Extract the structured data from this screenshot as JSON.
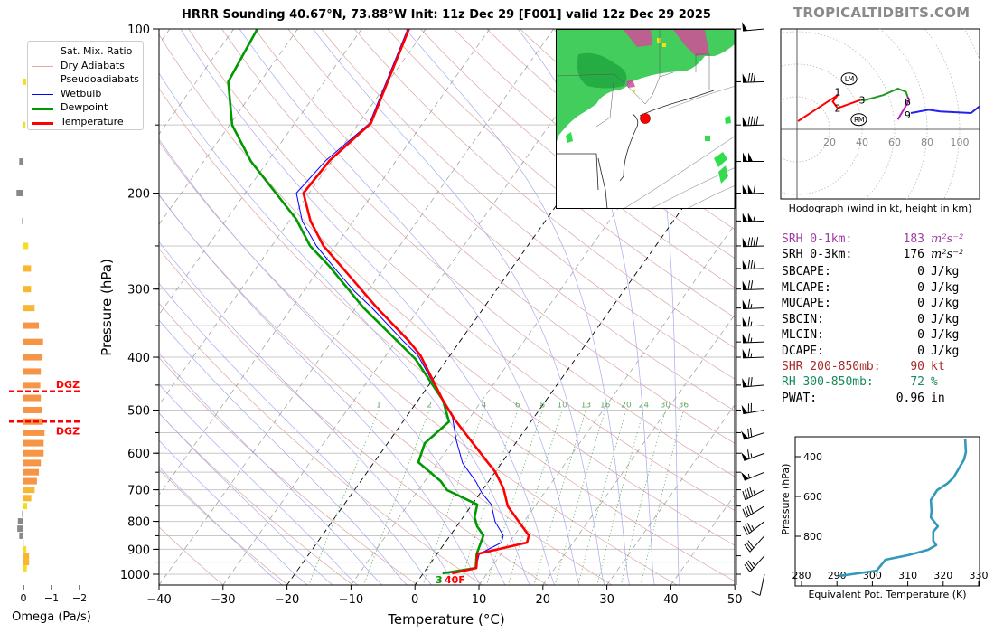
{
  "header": {
    "title": "HRRR Sounding 40.67°N, 73.88°W Init: 11z Dec 29 [F001] valid 12z Dec 29 2025",
    "watermark": "TROPICALTIDBITS.COM"
  },
  "legend": [
    {
      "label": "Sat. Mix. Ratio",
      "color": "#55aa55",
      "style": "dotted"
    },
    {
      "label": "Dry Adiabats",
      "color": "#e0a8a8",
      "style": "solid-thin"
    },
    {
      "label": "Pseudoadiabats",
      "color": "#aaaaee",
      "style": "solid-thin"
    },
    {
      "label": "Wetbulb",
      "color": "#0000ff",
      "style": "solid"
    },
    {
      "label": "Dewpoint",
      "color": "#009900",
      "style": "thick"
    },
    {
      "label": "Temperature",
      "color": "#ff0000",
      "style": "thick"
    }
  ],
  "stats": [
    {
      "label": "SRH 0-1km:",
      "value": "183",
      "unit": "m²s⁻²",
      "color": "#a03ca0"
    },
    {
      "label": "SRH 0-3km:",
      "value": "176",
      "unit": "m²s⁻²",
      "color": "#000000"
    },
    {
      "label": "SBCAPE:",
      "value": "0",
      "unit": "J/kg",
      "color": "#000000"
    },
    {
      "label": "MLCAPE:",
      "value": "0",
      "unit": "J/kg",
      "color": "#000000"
    },
    {
      "label": "MUCAPE:",
      "value": "0",
      "unit": "J/kg",
      "color": "#000000"
    },
    {
      "label": "SBCIN:",
      "value": "0",
      "unit": "J/kg",
      "color": "#000000"
    },
    {
      "label": "MLCIN:",
      "value": "0",
      "unit": "J/kg",
      "color": "#000000"
    },
    {
      "label": "DCAPE:",
      "value": "0",
      "unit": "J/kg",
      "color": "#000000"
    },
    {
      "label": "SHR 200-850mb:",
      "value": "90",
      "unit": "kt",
      "color": "#a52a2a"
    },
    {
      "label": "RH 300-850mb:",
      "value": "72",
      "unit": "%",
      "color": "#1a8a5a"
    },
    {
      "label": "PWAT:",
      "value": "0.96",
      "unit": "in",
      "color": "#000000"
    }
  ],
  "surface_labels": {
    "dewpoint": "3",
    "temperature": "40F",
    "dewpoint_color": "#009900",
    "temperature_color": "#ff0000"
  },
  "dgz_label": "DGZ",
  "chart_data": [
    {
      "type": "line",
      "name": "skew-t",
      "title": "HRRR Sounding 40.67°N, 73.88°W Init: 11z Dec 29 [F001] valid 12z Dec 29 2025",
      "xlabel": "Temperature (°C)",
      "ylabel": "Pressure (hPa)",
      "xlim": [
        -40,
        50
      ],
      "ylim": [
        1046,
        100
      ],
      "xticks": [
        -40,
        -30,
        -20,
        -10,
        0,
        10,
        20,
        30,
        40,
        50
      ],
      "xtick_labels": [
        "−40",
        "−30",
        "−20",
        "−10",
        "0",
        "10",
        "20",
        "30",
        "40",
        "50"
      ],
      "yticks": [
        100,
        200,
        300,
        400,
        500,
        600,
        700,
        800,
        900,
        1000
      ],
      "ytick_labels": [
        "100",
        "200",
        "300",
        "400",
        "500",
        "600",
        "700",
        "800",
        "900",
        "1000"
      ],
      "isobars": [
        100,
        150,
        200,
        250,
        300,
        350,
        400,
        450,
        500,
        550,
        600,
        650,
        700,
        750,
        800,
        850,
        900,
        950,
        1000
      ],
      "highlight_isotherms": [
        0,
        -20
      ],
      "mixing_ratios": [
        1,
        2,
        4,
        6,
        8,
        10,
        13,
        16,
        20,
        24,
        30,
        36
      ],
      "mixing_ratio_labels": [
        "1",
        "2",
        "4",
        "6",
        "8",
        "10",
        "13",
        "16",
        "20",
        "24",
        "30",
        "36"
      ],
      "colors": {
        "temperature": "#ff0000",
        "dewpoint": "#009900",
        "wetbulb": "#0000ff",
        "dry": "#dba5a5",
        "moist": "#aaaaee",
        "mixing": "#55aa55",
        "isotherm": "#999999"
      },
      "series": [
        {
          "name": "Temperature",
          "points": [
            [
              100,
              -62.6
            ],
            [
              149,
              -58.1
            ],
            [
              174,
              -60.4
            ],
            [
              200,
              -60.9
            ],
            [
              225,
              -56.7
            ],
            [
              250,
              -51.9
            ],
            [
              278,
              -45.7
            ],
            [
              303,
              -40.7
            ],
            [
              324,
              -36.8
            ],
            [
              373,
              -28.1
            ],
            [
              397,
              -24.6
            ],
            [
              480,
              -16.1
            ],
            [
              519,
              -12.3
            ],
            [
              625,
              -2.1
            ],
            [
              649,
              0.0
            ],
            [
              696,
              3.1
            ],
            [
              751,
              5.8
            ],
            [
              849,
              12.3
            ],
            [
              875,
              12.8
            ],
            [
              918,
              6.3
            ],
            [
              974,
              7.7
            ],
            [
              996,
              4.5
            ]
          ]
        },
        {
          "name": "Dewpoint",
          "points": [
            [
              100,
              -86.3
            ],
            [
              125,
              -85.0
            ],
            [
              150,
              -79.6
            ],
            [
              175,
              -72.6
            ],
            [
              223,
              -59.2
            ],
            [
              250,
              -54.0
            ],
            [
              273,
              -48.6
            ],
            [
              324,
              -38.9
            ],
            [
              403,
              -25.0
            ],
            [
              480,
              -16.1
            ],
            [
              525,
              -12.8
            ],
            [
              575,
              -14.2
            ],
            [
              623,
              -13.1
            ],
            [
              675,
              -7.5
            ],
            [
              701,
              -5.5
            ],
            [
              745,
              0.8
            ],
            [
              786,
              1.8
            ],
            [
              817,
              3.2
            ],
            [
              849,
              5.2
            ],
            [
              918,
              6.2
            ],
            [
              974,
              7.6
            ],
            [
              996,
              3.0
            ]
          ]
        },
        {
          "name": "Wetbulb",
          "points": [
            [
              100,
              -62.8
            ],
            [
              149,
              -58.3
            ],
            [
              174,
              -61.0
            ],
            [
              200,
              -62.0
            ],
            [
              225,
              -58.0
            ],
            [
              250,
              -53.0
            ],
            [
              278,
              -47.0
            ],
            [
              303,
              -42.0
            ],
            [
              324,
              -37.6
            ],
            [
              373,
              -29.0
            ],
            [
              397,
              -25.0
            ],
            [
              480,
              -16.1
            ],
            [
              507,
              -13.3
            ],
            [
              568,
              -9.6
            ],
            [
              625,
              -6.1
            ],
            [
              677,
              -1.9
            ],
            [
              709,
              0.2
            ],
            [
              745,
              3.0
            ],
            [
              801,
              5.5
            ],
            [
              849,
              8.3
            ],
            [
              875,
              8.8
            ],
            [
              918,
              6.6
            ],
            [
              974,
              7.6
            ],
            [
              996,
              3.8
            ]
          ]
        }
      ],
      "dgz_pressures": [
        462,
        525
      ],
      "winds": [
        {
          "p": 100,
          "dir": 265,
          "spd": 50
        },
        {
          "p": 125,
          "dir": 268,
          "spd": 80
        },
        {
          "p": 150,
          "dir": 268,
          "spd": 90
        },
        {
          "p": 175,
          "dir": 270,
          "spd": 100
        },
        {
          "p": 200,
          "dir": 268,
          "spd": 110
        },
        {
          "p": 225,
          "dir": 268,
          "spd": 105
        },
        {
          "p": 250,
          "dir": 268,
          "spd": 90
        },
        {
          "p": 275,
          "dir": 268,
          "spd": 80
        },
        {
          "p": 300,
          "dir": 268,
          "spd": 70
        },
        {
          "p": 325,
          "dir": 268,
          "spd": 65
        },
        {
          "p": 350,
          "dir": 268,
          "spd": 65
        },
        {
          "p": 375,
          "dir": 268,
          "spd": 65
        },
        {
          "p": 400,
          "dir": 268,
          "spd": 65
        },
        {
          "p": 450,
          "dir": 265,
          "spd": 70
        },
        {
          "p": 500,
          "dir": 260,
          "spd": 70
        },
        {
          "p": 550,
          "dir": 252,
          "spd": 70
        },
        {
          "p": 600,
          "dir": 250,
          "spd": 65
        },
        {
          "p": 650,
          "dir": 248,
          "spd": 55
        },
        {
          "p": 700,
          "dir": 242,
          "spd": 45
        },
        {
          "p": 750,
          "dir": 238,
          "spd": 40
        },
        {
          "p": 800,
          "dir": 232,
          "spd": 35
        },
        {
          "p": 850,
          "dir": 222,
          "spd": 30
        },
        {
          "p": 925,
          "dir": 222,
          "spd": 35
        },
        {
          "p": 1000,
          "dir": 192,
          "spd": 10
        }
      ]
    },
    {
      "type": "bar",
      "name": "omega",
      "xlabel": "Omega (Pa/s)",
      "xticks": [
        0,
        -1,
        -2
      ],
      "xtick_labels": [
        "0",
        "−1",
        "−2"
      ],
      "colors": {
        "rising_weak": "#f5dd20",
        "rising_mid": "#f8b732",
        "rising_strong": "#f59545",
        "sinking": "#888888",
        "dgz": "#ff0000"
      },
      "levels": [
        125,
        150,
        175,
        200,
        225,
        250,
        275,
        300,
        325,
        350,
        375,
        400,
        425,
        450,
        475,
        500,
        525,
        550,
        575,
        600,
        625,
        650,
        675,
        700,
        725,
        750,
        775,
        800,
        825,
        850,
        875,
        900,
        925,
        950,
        975
      ],
      "values": [
        -0.1,
        -0.07,
        0.15,
        0.25,
        0.05,
        -0.17,
        -0.27,
        -0.27,
        -0.4,
        -0.55,
        -0.7,
        -0.68,
        -0.62,
        -0.6,
        -0.62,
        -0.65,
        -0.7,
        -0.75,
        -0.72,
        -0.72,
        -0.62,
        -0.55,
        -0.48,
        -0.4,
        -0.28,
        -0.13,
        0.05,
        0.2,
        0.22,
        0.15,
        0.02,
        -0.1,
        -0.2,
        -0.2,
        -0.12
      ]
    },
    {
      "type": "line",
      "name": "hodograph",
      "caption": "Hodograph (wind in kt, height in km)",
      "ring_labels": [
        "20",
        "40",
        "60",
        "80",
        "100"
      ],
      "rings": [
        20,
        40,
        60,
        80,
        100,
        120
      ],
      "segments": [
        {
          "name": "0-3 km",
          "color": "#ff0000",
          "uv": [
            [
              0.6,
              5
            ],
            [
              25,
              21
            ],
            [
              22,
              17
            ],
            [
              25,
              13
            ],
            [
              39,
              18
            ]
          ]
        },
        {
          "name": "3-6 km",
          "color": "#229922",
          "uv": [
            [
              39,
              18
            ],
            [
              42,
              18
            ],
            [
              53,
              21
            ],
            [
              62,
              25
            ],
            [
              67,
              23
            ],
            [
              68,
              20
            ]
          ]
        },
        {
          "name": "6-9 km",
          "color": "#bb22bb",
          "uv": [
            [
              68,
              20
            ],
            [
              69,
              18
            ],
            [
              62,
              6
            ]
          ]
        },
        {
          "name": "9+ km",
          "color": "#2222ee",
          "uv": [
            [
              70,
              10
            ],
            [
              81,
              12
            ],
            [
              88,
              11
            ],
            [
              107,
              10
            ],
            [
              112,
              14
            ]
          ]
        }
      ],
      "height_labels": [
        {
          "text": "1",
          "uv": [
            25,
            23
          ]
        },
        {
          "text": "2",
          "uv": [
            25,
            13
          ]
        },
        {
          "text": "3",
          "uv": [
            40,
            18
          ]
        },
        {
          "text": "6",
          "uv": [
            68,
            17
          ]
        },
        {
          "text": "9",
          "uv": [
            68,
            9
          ]
        }
      ],
      "storm_motion": [
        {
          "text": "LM",
          "uv": [
            32,
            31
          ]
        },
        {
          "text": "RM",
          "uv": [
            38,
            6
          ]
        }
      ]
    },
    {
      "type": "line",
      "name": "theta-e",
      "xlabel": "Equivalent Pot. Temperature (K)",
      "ylabel": "Pressure (hPa)",
      "xlim": [
        278,
        330
      ],
      "ylim": [
        1050,
        300
      ],
      "xticks": [
        280,
        290,
        300,
        310,
        320,
        330
      ],
      "xtick_labels": [
        "280",
        "290",
        "300",
        "310",
        "320",
        "330"
      ],
      "yticks": [
        400,
        600,
        800
      ],
      "ytick_labels": [
        "400",
        "600",
        "800"
      ],
      "color": "#3399bb",
      "points": [
        [
          309,
          326.2
        ],
        [
          377,
          326.4
        ],
        [
          414,
          325.9
        ],
        [
          505,
          322.9
        ],
        [
          536,
          321.1
        ],
        [
          568,
          318.3
        ],
        [
          618,
          316.5
        ],
        [
          673,
          316.7
        ],
        [
          705,
          316.5
        ],
        [
          750,
          318.5
        ],
        [
          777,
          317.2
        ],
        [
          823,
          317.2
        ],
        [
          845,
          318.0
        ],
        [
          868,
          315.7
        ],
        [
          895,
          310.1
        ],
        [
          918,
          303.7
        ],
        [
          973,
          301.2
        ],
        [
          1000,
          290.5
        ]
      ]
    }
  ]
}
